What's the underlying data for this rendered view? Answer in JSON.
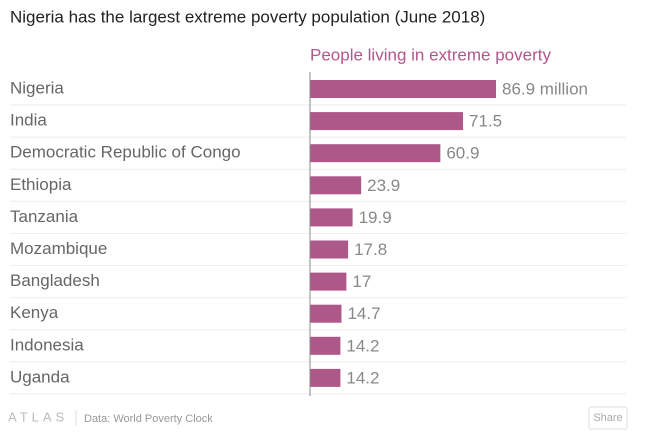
{
  "chart_data": {
    "type": "bar",
    "orientation": "horizontal",
    "title": "Nigeria has the largest extreme poverty population (June 2018)",
    "series_name": "People living in extreme poverty",
    "color": "#ad5889",
    "categories": [
      "Nigeria",
      "India",
      "Democratic Republic of Congo",
      "Ethiopia",
      "Tanzania",
      "Mozambique",
      "Bangladesh",
      "Kenya",
      "Indonesia",
      "Uganda"
    ],
    "values": [
      86.9,
      71.5,
      60.9,
      23.9,
      19.9,
      17.8,
      17,
      14.7,
      14.2,
      14.2
    ],
    "value_labels": [
      "86.9 million",
      "71.5",
      "60.9",
      "23.9",
      "19.9",
      "17.8",
      "17",
      "14.7",
      "14.2",
      "14.2"
    ],
    "grid": true
  },
  "footer": {
    "brand": "ATLAS",
    "source": "Data: World Poverty Clock",
    "share": "Share"
  }
}
